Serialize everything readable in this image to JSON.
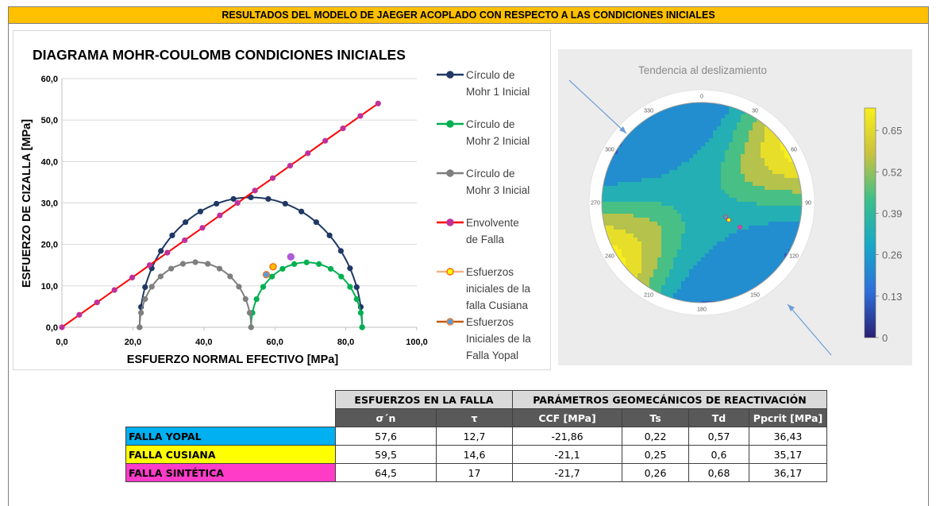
{
  "banner": {
    "title": "RESULTADOS DEL MODELO DE JAEGER ACOPLADO CON RESPECTO A LAS CONDICIONES INICIALES"
  },
  "chart_data": [
    {
      "type": "scatter",
      "title": "DIAGRAMA MOHR-COULOMB CONDICIONES INICIALES",
      "xlabel": "ESFUERZO NORMAL EFECTIVO [MPa]",
      "ylabel": "ESFUERZO DE CIZALLA [MPa]",
      "xlim": [
        0,
        100
      ],
      "ylim": [
        0,
        60
      ],
      "x_ticks": [
        "0,0",
        "20,0",
        "40,0",
        "60,0",
        "80,0",
        "100,0"
      ],
      "y_ticks": [
        "0,0",
        "10,0",
        "20,0",
        "30,0",
        "40,0",
        "50,0",
        "60,0"
      ],
      "grid": true,
      "legend_position": "right",
      "circles": [
        {
          "name": "Círculo de Mohr 1 Inicial",
          "sigma_min": 21.9,
          "sigma_max": 84.6,
          "color": "#1f3864"
        },
        {
          "name": "Círculo de Mohr 2 Inicial",
          "sigma_min": 53.3,
          "sigma_max": 84.6,
          "color": "#00b050"
        },
        {
          "name": "Círculo de Mohr 3 Inicial",
          "sigma_min": 21.9,
          "sigma_max": 53.3,
          "color": "#7f7f7f"
        }
      ],
      "envelope": {
        "name": "Envolvente de Falla",
        "color": "#ff0000",
        "marker_color": "#c0309a",
        "x": [
          0,
          4.9,
          9.9,
          14.8,
          19.8,
          24.7,
          29.7,
          34.6,
          39.6,
          44.5,
          49.5,
          54.4,
          59.4,
          64.3,
          69.3,
          74.2,
          79.2,
          84.1,
          89.1
        ],
        "y": [
          0,
          3,
          6,
          9,
          12,
          15,
          18,
          21,
          24,
          27,
          30,
          33,
          36,
          39,
          42,
          45,
          48,
          51,
          54
        ]
      },
      "fault_points": [
        {
          "name": "Esfuerzos iniciales de la falla Cusiana",
          "x": 59.5,
          "y": 14.6,
          "color": "#ffc000",
          "edge": "#ff6600"
        },
        {
          "name": "Esfuerzos Iniciales de la Falla Yopal",
          "x": 57.6,
          "y": 12.7,
          "color": "#5b9bd5",
          "edge": "#ed7d31"
        },
        {
          "name": "",
          "x": 64.5,
          "y": 17,
          "color": "#b05cd6",
          "edge": "#b05cd6"
        }
      ],
      "legend": [
        {
          "lines": [
            "Círculo de",
            "Mohr 1 Inicial"
          ],
          "line_color": "#1f3864",
          "marker_color": "#1f3864",
          "marker_edge": "#1f3864"
        },
        {
          "lines": [
            "Círculo de",
            "Mohr 2 Inicial"
          ],
          "line_color": "#00b050",
          "marker_color": "#00b050",
          "marker_edge": "#00b050"
        },
        {
          "lines": [
            "Círculo de",
            "Mohr 3 Inicial"
          ],
          "line_color": "#7f7f7f",
          "marker_color": "#7f7f7f",
          "marker_edge": "#7f7f7f"
        },
        {
          "lines": [
            "Envolvente",
            "de Falla"
          ],
          "line_color": "#ff0000",
          "marker_color": "#c0309a",
          "marker_edge": "#c0309a"
        },
        {
          "lines": [
            "Esfuerzos",
            "iniciales de la",
            "falla Cusiana"
          ],
          "line_color": "#f4b183",
          "marker_color": "#ffff00",
          "marker_edge": "#ff6600"
        },
        {
          "lines": [
            "Esfuerzos",
            "Iniciales de la",
            "Falla Yopal"
          ],
          "line_color": "#c55a11",
          "marker_color": "#5b9bd5",
          "marker_edge": "#ed7d31"
        }
      ]
    },
    {
      "type": "heatmap",
      "title": "Tendencia al deslizamiento",
      "azimuth_labels": [
        "0",
        "30",
        "60",
        "90",
        "120",
        "150",
        "180",
        "210",
        "240",
        "270",
        "300",
        "330"
      ],
      "colorbar_ticks": [
        "0",
        "0.13",
        "0.26",
        "0.39",
        "0.52",
        "0.65"
      ],
      "colorbar_range": [
        0,
        0.72
      ],
      "colors": [
        "#2a1f73",
        "#2e6fd9",
        "#17a7c7",
        "#3cbf8a",
        "#c9c240",
        "#f9ef1c"
      ],
      "fault_poles": [
        {
          "name": "Yopal",
          "color": "#5b9bd5"
        },
        {
          "name": "Cusiana",
          "color": "#ffff00"
        },
        {
          "name": "Sintética",
          "color": "#d63fd6"
        }
      ]
    }
  ],
  "table": {
    "group_headers": [
      "ESFUERZOS EN LA FALLA",
      "PARÁMETROS GEOMECÁNICOS DE REACTIVACIÓN"
    ],
    "columns": [
      "σ´n",
      "τ",
      "CCF [MPa]",
      "Ts",
      "Td",
      "Ppcrit [MPa]"
    ],
    "rows": [
      {
        "label": "FALLA YOPAL",
        "color": "#00b0f0",
        "values": [
          "57,6",
          "12,7",
          "-21,86",
          "0,22",
          "0,57",
          "36,43"
        ]
      },
      {
        "label": "FALLA CUSIANA",
        "color": "#ffff00",
        "values": [
          "59,5",
          "14,6",
          "-21,1",
          "0,25",
          "0,6",
          "35,17"
        ]
      },
      {
        "label": "FALLA SINTÉTICA",
        "color": "#ff3cc8",
        "values": [
          "64,5",
          "17",
          "-21,7",
          "0,26",
          "0,68",
          "36,17"
        ]
      }
    ]
  }
}
